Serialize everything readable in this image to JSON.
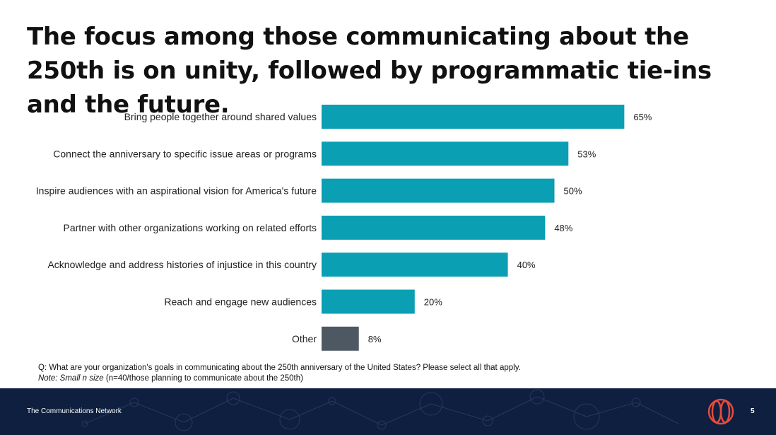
{
  "slide": {
    "title": "The focus among those communicating about the 250th is on unity, followed by programmatic tie-ins and the future."
  },
  "chart_data": {
    "type": "bar",
    "orientation": "horizontal",
    "categories": [
      "Bring people together around shared values",
      "Connect the anniversary to specific issue areas or programs",
      "Inspire audiences with an aspirational vision for America's future",
      "Partner with other organizations working on related efforts",
      "Acknowledge and address histories of injustice in this country",
      "Reach and engage new audiences",
      "Other"
    ],
    "values": [
      65,
      53,
      50,
      48,
      40,
      20,
      8
    ],
    "value_labels": [
      "65%",
      "53%",
      "50%",
      "48%",
      "40%",
      "20%",
      "8%"
    ],
    "colors": [
      "#0a9fb3",
      "#0a9fb3",
      "#0a9fb3",
      "#0a9fb3",
      "#0a9fb3",
      "#0a9fb3",
      "#4d5863"
    ],
    "xlim": [
      0,
      100
    ],
    "grid": false,
    "legend": "none"
  },
  "notes": {
    "question": "Q: What are your organization's goals in communicating about the 250th anniversary of the United States? Please select all that apply.",
    "note_prefix": "Note: Small n size",
    "note_rest": " (n=40/those planning to communicate about the 250th)"
  },
  "footer": {
    "org_name": "The Communications Network",
    "page_number": "5",
    "background_color": "#0e1f3f",
    "logo_color": "#e84a3c",
    "logo_icon": "communications-network-logo"
  }
}
